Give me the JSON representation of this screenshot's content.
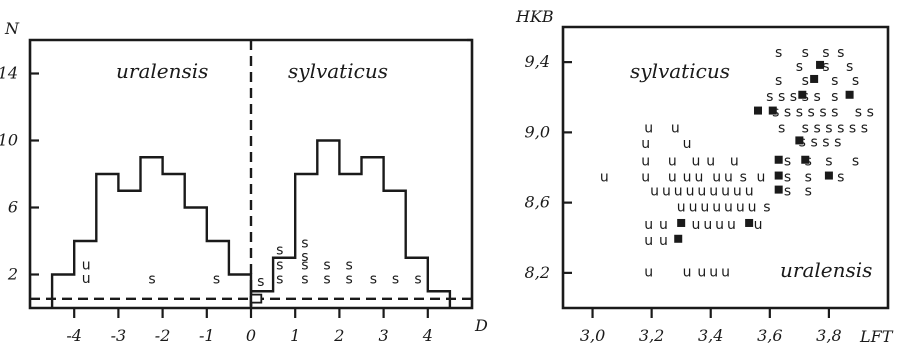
{
  "chart_data": [
    {
      "type": "histogram",
      "ylabel": "N",
      "xlabel": "D",
      "xlim": [
        -5,
        5
      ],
      "ylim": [
        0,
        16
      ],
      "x_ticks": [
        -4,
        -3,
        -2,
        -1,
        0,
        1,
        2,
        3,
        4
      ],
      "x_tick_labels": [
        "-4",
        "-3",
        "-2",
        "-1",
        "0",
        "1",
        "2",
        "3",
        "4"
      ],
      "y_ticks": [
        2,
        6,
        10,
        14
      ],
      "y_tick_labels": [
        "2",
        "6",
        "10",
        "14"
      ],
      "divider_x": 0,
      "baseline_y": 0,
      "group_labels": [
        "uralensis",
        "sylvaticus"
      ],
      "series": [
        {
          "name": "uralensis",
          "bins": [
            -4.5,
            -4.0,
            -3.5,
            -3.0,
            -2.5,
            -2.0,
            -1.5,
            -1.0,
            -0.5,
            0.0
          ],
          "counts": [
            2,
            4,
            8,
            7,
            9,
            8,
            6,
            4,
            2
          ]
        },
        {
          "name": "sylvaticus",
          "bins": [
            0.0,
            0.5,
            1.0,
            1.5,
            2.0,
            2.5,
            3.0,
            3.5,
            4.0,
            4.5
          ],
          "counts": [
            1,
            3,
            8,
            10,
            8,
            9,
            7,
            3,
            1
          ]
        }
      ],
      "markers": [
        {
          "label": "u",
          "x": -3.73,
          "y": 2.3
        },
        {
          "label": "u",
          "x": -3.73,
          "y": 1.5
        },
        {
          "label": "s",
          "x": -2.24,
          "y": 1.45
        },
        {
          "label": "s",
          "x": -0.78,
          "y": 1.45
        },
        {
          "label": "s",
          "x": 0.22,
          "y": 1.3
        },
        {
          "label": "s",
          "x": 0.65,
          "y": 3.2
        },
        {
          "label": "s",
          "x": 1.22,
          "y": 3.6
        },
        {
          "label": "s",
          "x": 1.22,
          "y": 2.8
        },
        {
          "label": "s",
          "x": 0.65,
          "y": 2.3
        },
        {
          "label": "s",
          "x": 1.22,
          "y": 2.3
        },
        {
          "label": "s",
          "x": 1.72,
          "y": 2.3
        },
        {
          "label": "s",
          "x": 2.22,
          "y": 2.3
        },
        {
          "label": "s",
          "x": 0.65,
          "y": 1.45
        },
        {
          "label": "s",
          "x": 1.22,
          "y": 1.45
        },
        {
          "label": "s",
          "x": 1.72,
          "y": 1.45
        },
        {
          "label": "s",
          "x": 2.22,
          "y": 1.45
        },
        {
          "label": "s",
          "x": 2.77,
          "y": 1.45
        },
        {
          "label": "s",
          "x": 3.27,
          "y": 1.45
        },
        {
          "label": "s",
          "x": 3.78,
          "y": 1.45
        }
      ],
      "open_squares": [
        {
          "x": 0.12,
          "y": 0.5
        }
      ]
    },
    {
      "type": "scatter",
      "ylabel": "HKB",
      "xlabel": "LFT",
      "xlim": [
        2.9,
        4.0
      ],
      "ylim": [
        8.0,
        9.6
      ],
      "x_ticks": [
        3.0,
        3.2,
        3.4,
        3.6,
        3.8
      ],
      "x_tick_labels": [
        "3,0",
        "3,2",
        "3,4",
        "3,6",
        "3,8"
      ],
      "y_ticks": [
        8.2,
        8.6,
        9.0,
        9.4
      ],
      "y_tick_labels": [
        "8,2",
        "8,6",
        "9,0",
        "9,4"
      ],
      "group_labels": [
        "sylvaticus",
        "uralensis"
      ],
      "markers": [
        {
          "label": "s",
          "x": 3.63,
          "y": 9.43
        },
        {
          "label": "s",
          "x": 3.72,
          "y": 9.43
        },
        {
          "label": "s",
          "x": 3.79,
          "y": 9.43
        },
        {
          "label": "s",
          "x": 3.84,
          "y": 9.43
        },
        {
          "label": "s",
          "x": 3.7,
          "y": 9.35
        },
        {
          "label": "s",
          "x": 3.79,
          "y": 9.35
        },
        {
          "label": "s",
          "x": 3.87,
          "y": 9.35
        },
        {
          "label": "s",
          "x": 3.63,
          "y": 9.27
        },
        {
          "label": "s",
          "x": 3.72,
          "y": 9.27
        },
        {
          "label": "s",
          "x": 3.82,
          "y": 9.27
        },
        {
          "label": "s",
          "x": 3.89,
          "y": 9.27
        },
        {
          "label": "s",
          "x": 3.6,
          "y": 9.18
        },
        {
          "label": "s",
          "x": 3.64,
          "y": 9.18
        },
        {
          "label": "s",
          "x": 3.68,
          "y": 9.18
        },
        {
          "label": "s",
          "x": 3.72,
          "y": 9.18
        },
        {
          "label": "s",
          "x": 3.76,
          "y": 9.18
        },
        {
          "label": "s",
          "x": 3.82,
          "y": 9.18
        },
        {
          "label": "s",
          "x": 3.62,
          "y": 9.09
        },
        {
          "label": "s",
          "x": 3.66,
          "y": 9.09
        },
        {
          "label": "s",
          "x": 3.7,
          "y": 9.09
        },
        {
          "label": "s",
          "x": 3.74,
          "y": 9.09
        },
        {
          "label": "s",
          "x": 3.78,
          "y": 9.09
        },
        {
          "label": "s",
          "x": 3.82,
          "y": 9.09
        },
        {
          "label": "s",
          "x": 3.9,
          "y": 9.09
        },
        {
          "label": "s",
          "x": 3.94,
          "y": 9.09
        },
        {
          "label": "s",
          "x": 3.64,
          "y": 9.0
        },
        {
          "label": "s",
          "x": 3.72,
          "y": 9.0
        },
        {
          "label": "s",
          "x": 3.76,
          "y": 9.0
        },
        {
          "label": "s",
          "x": 3.8,
          "y": 9.0
        },
        {
          "label": "s",
          "x": 3.84,
          "y": 9.0
        },
        {
          "label": "s",
          "x": 3.88,
          "y": 9.0
        },
        {
          "label": "s",
          "x": 3.92,
          "y": 9.0
        },
        {
          "label": "s",
          "x": 3.71,
          "y": 8.92
        },
        {
          "label": "s",
          "x": 3.75,
          "y": 8.92
        },
        {
          "label": "s",
          "x": 3.79,
          "y": 8.92
        },
        {
          "label": "s",
          "x": 3.83,
          "y": 8.92
        },
        {
          "label": "s",
          "x": 3.66,
          "y": 8.81
        },
        {
          "label": "s",
          "x": 3.73,
          "y": 8.81
        },
        {
          "label": "s",
          "x": 3.8,
          "y": 8.81
        },
        {
          "label": "s",
          "x": 3.89,
          "y": 8.81
        },
        {
          "label": "s",
          "x": 3.51,
          "y": 8.72
        },
        {
          "label": "s",
          "x": 3.66,
          "y": 8.72
        },
        {
          "label": "s",
          "x": 3.73,
          "y": 8.72
        },
        {
          "label": "s",
          "x": 3.84,
          "y": 8.72
        },
        {
          "label": "s",
          "x": 3.66,
          "y": 8.64
        },
        {
          "label": "s",
          "x": 3.73,
          "y": 8.64
        },
        {
          "label": "s",
          "x": 3.59,
          "y": 8.55
        },
        {
          "label": "u",
          "x": 3.04,
          "y": 8.72
        },
        {
          "label": "u",
          "x": 3.19,
          "y": 9.0
        },
        {
          "label": "u",
          "x": 3.28,
          "y": 9.0
        },
        {
          "label": "u",
          "x": 3.18,
          "y": 8.91
        },
        {
          "label": "u",
          "x": 3.32,
          "y": 8.91
        },
        {
          "label": "u",
          "x": 3.18,
          "y": 8.81
        },
        {
          "label": "u",
          "x": 3.27,
          "y": 8.81
        },
        {
          "label": "u",
          "x": 3.35,
          "y": 8.81
        },
        {
          "label": "u",
          "x": 3.4,
          "y": 8.81
        },
        {
          "label": "u",
          "x": 3.48,
          "y": 8.81
        },
        {
          "label": "u",
          "x": 3.18,
          "y": 8.72
        },
        {
          "label": "u",
          "x": 3.27,
          "y": 8.72
        },
        {
          "label": "u",
          "x": 3.32,
          "y": 8.72
        },
        {
          "label": "u",
          "x": 3.36,
          "y": 8.72
        },
        {
          "label": "u",
          "x": 3.42,
          "y": 8.72
        },
        {
          "label": "u",
          "x": 3.46,
          "y": 8.72
        },
        {
          "label": "u",
          "x": 3.57,
          "y": 8.72
        },
        {
          "label": "u",
          "x": 3.21,
          "y": 8.64
        },
        {
          "label": "u",
          "x": 3.25,
          "y": 8.64
        },
        {
          "label": "u",
          "x": 3.29,
          "y": 8.64
        },
        {
          "label": "u",
          "x": 3.33,
          "y": 8.64
        },
        {
          "label": "u",
          "x": 3.37,
          "y": 8.64
        },
        {
          "label": "u",
          "x": 3.41,
          "y": 8.64
        },
        {
          "label": "u",
          "x": 3.45,
          "y": 8.64
        },
        {
          "label": "u",
          "x": 3.49,
          "y": 8.64
        },
        {
          "label": "u",
          "x": 3.53,
          "y": 8.64
        },
        {
          "label": "u",
          "x": 3.3,
          "y": 8.55
        },
        {
          "label": "u",
          "x": 3.34,
          "y": 8.55
        },
        {
          "label": "u",
          "x": 3.38,
          "y": 8.55
        },
        {
          "label": "u",
          "x": 3.42,
          "y": 8.55
        },
        {
          "label": "u",
          "x": 3.46,
          "y": 8.55
        },
        {
          "label": "u",
          "x": 3.5,
          "y": 8.55
        },
        {
          "label": "u",
          "x": 3.54,
          "y": 8.55
        },
        {
          "label": "u",
          "x": 3.19,
          "y": 8.45
        },
        {
          "label": "u",
          "x": 3.24,
          "y": 8.45
        },
        {
          "label": "u",
          "x": 3.35,
          "y": 8.45
        },
        {
          "label": "u",
          "x": 3.39,
          "y": 8.45
        },
        {
          "label": "u",
          "x": 3.43,
          "y": 8.45
        },
        {
          "label": "u",
          "x": 3.47,
          "y": 8.45
        },
        {
          "label": "u",
          "x": 3.56,
          "y": 8.45
        },
        {
          "label": "u",
          "x": 3.19,
          "y": 8.36
        },
        {
          "label": "u",
          "x": 3.24,
          "y": 8.36
        },
        {
          "label": "u",
          "x": 3.19,
          "y": 8.18
        },
        {
          "label": "u",
          "x": 3.32,
          "y": 8.18
        },
        {
          "label": "u",
          "x": 3.37,
          "y": 8.18
        },
        {
          "label": "u",
          "x": 3.41,
          "y": 8.18
        },
        {
          "label": "u",
          "x": 3.45,
          "y": 8.18
        }
      ],
      "filled_squares": [
        {
          "x": 3.77,
          "y": 9.35
        },
        {
          "x": 3.75,
          "y": 9.27
        },
        {
          "x": 3.71,
          "y": 9.18
        },
        {
          "x": 3.87,
          "y": 9.18
        },
        {
          "x": 3.56,
          "y": 9.09
        },
        {
          "x": 3.61,
          "y": 9.09
        },
        {
          "x": 3.7,
          "y": 8.92
        },
        {
          "x": 3.63,
          "y": 8.81
        },
        {
          "x": 3.72,
          "y": 8.81
        },
        {
          "x": 3.8,
          "y": 8.72
        },
        {
          "x": 3.63,
          "y": 8.72
        },
        {
          "x": 3.63,
          "y": 8.64
        },
        {
          "x": 3.3,
          "y": 8.45
        },
        {
          "x": 3.53,
          "y": 8.45
        },
        {
          "x": 3.29,
          "y": 8.36
        }
      ]
    }
  ]
}
